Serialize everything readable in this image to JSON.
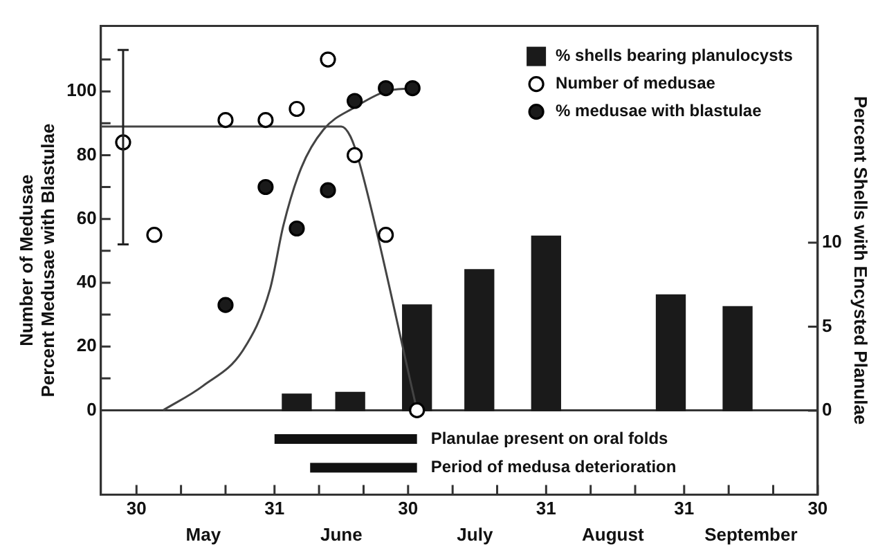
{
  "chart_data": {
    "type": "scatter",
    "xlim": [
      "--04-22",
      "--09-30"
    ],
    "xticks": [
      {
        "value": "--04-30",
        "label": "30"
      },
      {
        "value": "--05-10",
        "label": null
      },
      {
        "value": "--05-20",
        "label": null
      },
      {
        "value": "--05-31",
        "label": "31"
      },
      {
        "value": "--06-10",
        "label": null
      },
      {
        "value": "--06-20",
        "label": null
      },
      {
        "value": "--06-30",
        "label": "30"
      },
      {
        "value": "--07-10",
        "label": null
      },
      {
        "value": "--07-20",
        "label": null
      },
      {
        "value": "--07-31",
        "label": "31"
      },
      {
        "value": "--08-10",
        "label": null
      },
      {
        "value": "--08-20",
        "label": null
      },
      {
        "value": "--08-31",
        "label": "31"
      },
      {
        "value": "--09-10",
        "label": null
      },
      {
        "value": "--09-20",
        "label": null
      },
      {
        "value": "--09-30",
        "label": "30"
      }
    ],
    "x2lim": [
      "--04-22",
      "--09-30"
    ],
    "x2ticks": [
      {
        "value": "--05-15",
        "label": "May"
      },
      {
        "value": "--06-15",
        "label": "June"
      },
      {
        "value": "--07-15",
        "label": "July"
      },
      {
        "value": "--08-15",
        "label": "August"
      },
      {
        "value": "--09-15",
        "label": "September"
      }
    ],
    "ylim": [
      -26.5,
      120.5
    ],
    "yticks": [
      0,
      {
        "value": 10,
        "label": null
      },
      20,
      {
        "value": 30,
        "label": null
      },
      40,
      {
        "value": 50,
        "label": null
      },
      60,
      {
        "value": 70,
        "label": null
      },
      80,
      {
        "value": 90,
        "label": null
      },
      100,
      {
        "value": 110,
        "label": null
      }
    ],
    "y2lim": [
      -5,
      22.9
    ],
    "y2ticks": [
      0,
      5,
      10
    ],
    "ylabel": "Number of Medusae\nPercent Medusae with Blastulae",
    "y2label": "Percent Shells with Encysted Planulae",
    "marker": "circle",
    "grid": false,
    "legend": "top right",
    "ref_lines": [
      {
        "axis": "y",
        "value": 0,
        "color": "#333333"
      }
    ],
    "series": [
      {
        "type": "bar",
        "axis": "y2",
        "name": "% shells bearing planulocysts",
        "color": "#1a1a1a",
        "x": [
          "--06-05",
          "--06-17",
          "--07-02",
          "--07-16",
          "--07-31",
          "--08-28",
          "--09-12"
        ],
        "values": [
          1.0,
          1.1,
          6.3,
          8.4,
          10.4,
          6.9,
          6.2
        ]
      },
      {
        "type": "line",
        "marker": "none",
        "color": "#444444",
        "x": [
          "--04-22",
          "--06-15",
          "--06-17",
          "--06-19",
          "--07-02"
        ],
        "values": [
          89,
          89,
          86,
          78,
          0
        ]
      },
      {
        "type": "line",
        "marker": "none",
        "color": "#444444",
        "x": [
          "--05-06",
          "--05-15",
          "--05-24",
          "--05-30",
          "--06-02",
          "--06-06",
          "--06-11",
          "--06-18",
          "--06-25",
          "--07-01"
        ],
        "values": [
          0,
          7.7,
          19,
          38,
          58,
          76,
          88,
          95,
          100,
          101
        ]
      },
      {
        "name": "Number of medusae",
        "color": "#ffffff",
        "x": [
          "--04-27",
          "--05-04",
          "--05-20",
          "--05-29",
          "--06-05",
          "--06-12",
          "--06-18",
          "--06-25",
          "--07-02"
        ],
        "values": [
          84,
          55,
          91,
          91,
          94.5,
          110,
          80,
          55,
          0
        ],
        "errors": [
          [
            52,
            113
          ],
          null,
          null,
          null,
          null,
          null,
          null,
          null,
          null
        ]
      },
      {
        "name": "% medusae with blastulae",
        "color": "#1a1a1a",
        "x": [
          "--05-20",
          "--05-29",
          "--06-05",
          "--06-12",
          "--06-18",
          "--06-25",
          "--07-01"
        ],
        "values": [
          33,
          70,
          57,
          69,
          97,
          101,
          101
        ]
      },
      {
        "type": "line",
        "marker": "none",
        "name": "Planulae present on oral folds",
        "color": "#111111",
        "x": [
          "--05-31",
          "--07-02"
        ],
        "values": [
          -9,
          -9
        ]
      },
      {
        "type": "line",
        "marker": "none",
        "name": "Period of medusa deterioration",
        "color": "#111111",
        "x": [
          "--06-08",
          "--07-02"
        ],
        "values": [
          -18,
          -18
        ]
      }
    ]
  }
}
